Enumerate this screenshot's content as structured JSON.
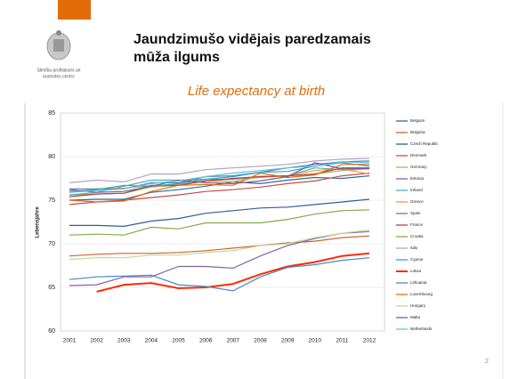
{
  "logo_text": [
    "Slimību profilakses un",
    "kontroles centrs"
  ],
  "header": {
    "title_lines": [
      "Jaundzimušo vidējais paredzamais",
      "mūža ilgums"
    ],
    "subtitle": "Life expectancy at birth"
  },
  "page_number": "2",
  "chart_data": {
    "type": "line",
    "y_label": "Lebensjahre",
    "categories": [
      "2001",
      "2002",
      "2003",
      "2004",
      "2005",
      "2006",
      "2007",
      "2008",
      "2009",
      "2010",
      "2011",
      "2012"
    ],
    "ylim": [
      60,
      85
    ],
    "yticks": [
      60,
      65,
      70,
      75,
      80,
      85
    ],
    "grid": true,
    "series": [
      {
        "name": "Belgium",
        "color": "#2e6ca4",
        "values": [
          75.0,
          75.1,
          75.1,
          75.9,
          76.2,
          76.6,
          77.1,
          76.9,
          77.3,
          77.6,
          77.5,
          77.8
        ]
      },
      {
        "name": "Bulgaria",
        "color": "#d0622e",
        "values": [
          68.6,
          68.8,
          68.9,
          68.9,
          69.0,
          69.2,
          69.5,
          69.8,
          70.1,
          70.3,
          70.7,
          70.9
        ]
      },
      {
        "name": "Czech Republic",
        "color": "#2d5e9e",
        "values": [
          72.1,
          72.1,
          72.0,
          72.6,
          72.9,
          73.5,
          73.8,
          74.1,
          74.2,
          74.5,
          74.8,
          75.1
        ]
      },
      {
        "name": "Denmark",
        "color": "#c0504d",
        "values": [
          74.5,
          74.8,
          75.0,
          75.3,
          75.6,
          76.0,
          76.2,
          76.5,
          76.9,
          77.2,
          77.8,
          78.1
        ]
      },
      {
        "name": "Germany",
        "color": "#9bbb59",
        "values": [
          75.6,
          75.7,
          75.8,
          76.5,
          76.7,
          77.2,
          77.4,
          77.6,
          77.8,
          78.0,
          78.4,
          78.6
        ]
      },
      {
        "name": "Estonia",
        "color": "#8064a2",
        "values": [
          65.2,
          65.3,
          66.2,
          66.2,
          67.4,
          67.4,
          67.2,
          68.6,
          69.8,
          70.6,
          71.2,
          71.4
        ]
      },
      {
        "name": "Ireland",
        "color": "#4bacc6",
        "values": [
          75.6,
          75.9,
          76.6,
          77.3,
          77.3,
          77.4,
          77.4,
          77.7,
          77.8,
          78.7,
          78.5,
          78.7
        ]
      },
      {
        "name": "Greece",
        "color": "#f79646",
        "values": [
          75.9,
          76.3,
          76.4,
          76.6,
          76.8,
          77.2,
          77.1,
          77.7,
          77.8,
          78.4,
          78.6,
          78.0
        ]
      },
      {
        "name": "Spain",
        "color": "#4f81bd",
        "values": [
          76.3,
          76.3,
          76.3,
          77.0,
          77.0,
          77.7,
          77.8,
          78.2,
          78.7,
          79.1,
          79.4,
          79.5
        ]
      },
      {
        "name": "France",
        "color": "#b2443f",
        "values": [
          75.4,
          75.7,
          75.8,
          76.7,
          76.7,
          77.2,
          77.5,
          77.7,
          77.8,
          78.0,
          78.7,
          78.7
        ]
      },
      {
        "name": "Croatia",
        "color": "#8aa84c",
        "values": [
          71.0,
          71.1,
          71.0,
          71.9,
          71.7,
          72.4,
          72.4,
          72.4,
          72.8,
          73.4,
          73.8,
          73.9
        ]
      },
      {
        "name": "Italy",
        "color": "#b3a2c7",
        "values": [
          77.0,
          77.3,
          77.1,
          78.0,
          78.0,
          78.5,
          78.7,
          78.9,
          79.1,
          79.5,
          79.7,
          79.8
        ]
      },
      {
        "name": "Cyprus",
        "color": "#31a4bf",
        "values": [
          76.0,
          76.2,
          76.7,
          76.6,
          76.9,
          77.4,
          77.7,
          78.2,
          78.3,
          78.9,
          79.3,
          78.9
        ]
      },
      {
        "name": "Latvia",
        "color": "#ff2a00",
        "values": [
          null,
          64.5,
          65.3,
          65.5,
          64.9,
          65.0,
          65.4,
          66.5,
          67.4,
          67.9,
          68.6,
          68.9
        ]
      },
      {
        "name": "Lithuania",
        "color": "#4a86c8",
        "values": [
          65.9,
          66.2,
          66.3,
          66.4,
          65.3,
          65.1,
          64.6,
          66.2,
          67.3,
          67.6,
          68.1,
          68.4
        ]
      },
      {
        "name": "Luxembourg",
        "color": "#e46c0a",
        "values": [
          75.0,
          74.8,
          74.9,
          76.0,
          76.7,
          76.8,
          76.7,
          78.1,
          77.6,
          77.9,
          79.1,
          79.1
        ]
      },
      {
        "name": "Hungary",
        "color": "#c3d69b",
        "values": [
          68.2,
          68.4,
          68.4,
          68.7,
          68.7,
          69.0,
          69.2,
          69.8,
          70.0,
          70.7,
          71.2,
          71.6
        ]
      },
      {
        "name": "Malta",
        "color": "#7a5a9a",
        "values": [
          76.2,
          75.9,
          76.0,
          76.6,
          77.3,
          77.0,
          76.9,
          77.2,
          77.7,
          79.3,
          78.6,
          78.6
        ]
      },
      {
        "name": "Netherlands",
        "color": "#5fc2d8",
        "values": [
          75.9,
          76.1,
          76.3,
          76.9,
          77.2,
          77.7,
          78.1,
          78.4,
          78.7,
          78.9,
          79.4,
          79.3
        ]
      }
    ]
  }
}
